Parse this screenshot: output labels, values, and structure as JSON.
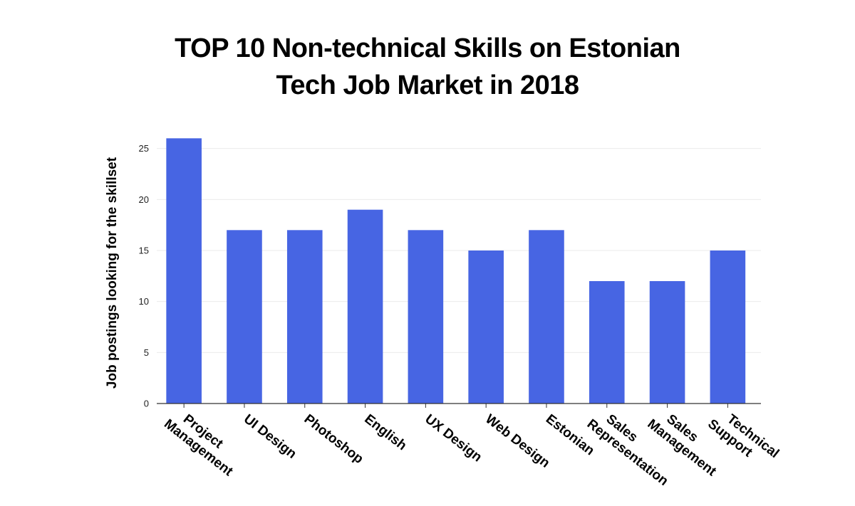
{
  "chart_data": {
    "type": "bar",
    "title_lines": [
      "TOP 10 Non-technical  Skills on Estonian",
      "Tech Job Market in 2018"
    ],
    "ylabel": "Job postings looking for the skillset",
    "xlabel": "",
    "ylim": [
      0,
      27
    ],
    "yticks": [
      0,
      5,
      10,
      15,
      20,
      25
    ],
    "grid": true,
    "bar_color": "#4765E3",
    "categories": [
      [
        "Project",
        "Management"
      ],
      [
        "UI Design"
      ],
      [
        "Photoshop"
      ],
      [
        "English"
      ],
      [
        "UX Design"
      ],
      [
        "Web Design"
      ],
      [
        "Estonian"
      ],
      [
        "Sales",
        "Representation"
      ],
      [
        "Sales",
        "Management"
      ],
      [
        "Technical",
        "Support"
      ]
    ],
    "values": [
      26,
      17,
      17,
      19,
      17,
      15,
      17,
      12,
      12,
      15
    ]
  }
}
